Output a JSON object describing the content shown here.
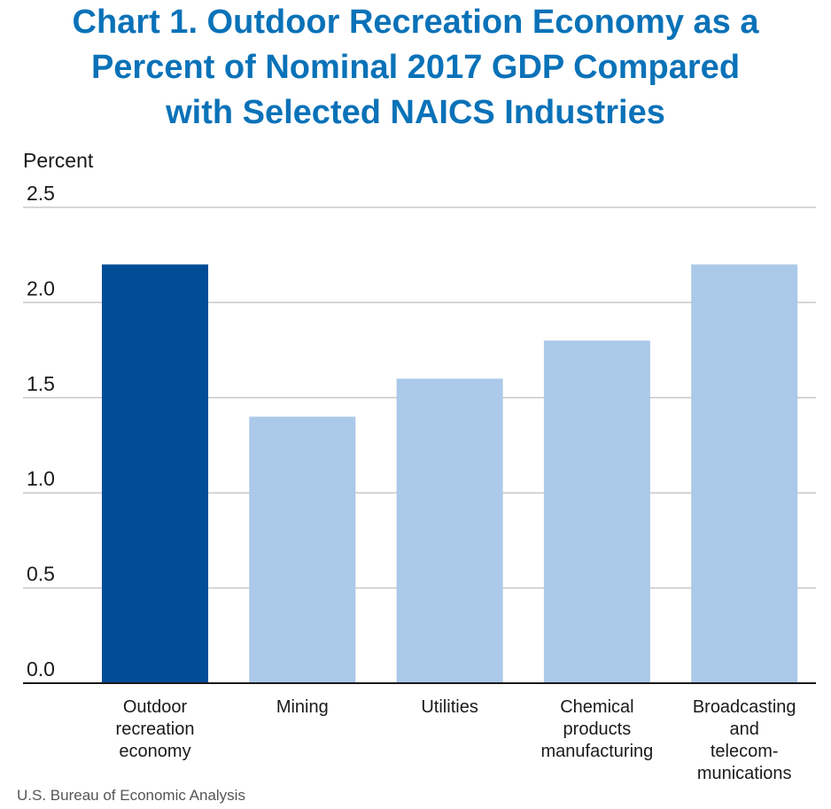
{
  "chart_data": {
    "type": "bar",
    "title": "Chart 1. Outdoor Recreation Economy as a Percent of Nominal 2017 GDP Compared with Selected NAICS Industries",
    "title_lines": [
      "Chart 1. Outdoor Recreation Economy as a",
      "Percent of Nominal 2017 GDP Compared",
      "with Selected NAICS Industries"
    ],
    "ylabel": "Percent",
    "xlabel": "",
    "ylim": [
      0,
      2.5
    ],
    "yticks": [
      "0.0",
      "0.5",
      "1.0",
      "1.5",
      "2.0",
      "2.5"
    ],
    "categories": [
      [
        "Outdoor",
        "recreation",
        "economy"
      ],
      [
        "Mining"
      ],
      [
        "Utilities"
      ],
      [
        "Chemical",
        "products",
        "manufacturing"
      ],
      [
        "Broadcasting",
        "and",
        "telecom-",
        "munications"
      ]
    ],
    "values": [
      2.2,
      1.4,
      1.6,
      1.8,
      2.2
    ],
    "grid": true,
    "legend": "none",
    "colors": {
      "highlight": "#004c97",
      "bar": "#abc9e8",
      "grid": "#c8c8c8",
      "axis": "#1a1a1a",
      "title": "#0a72b8"
    },
    "highlight_index": 0
  },
  "source": "U.S. Bureau of Economic Analysis"
}
